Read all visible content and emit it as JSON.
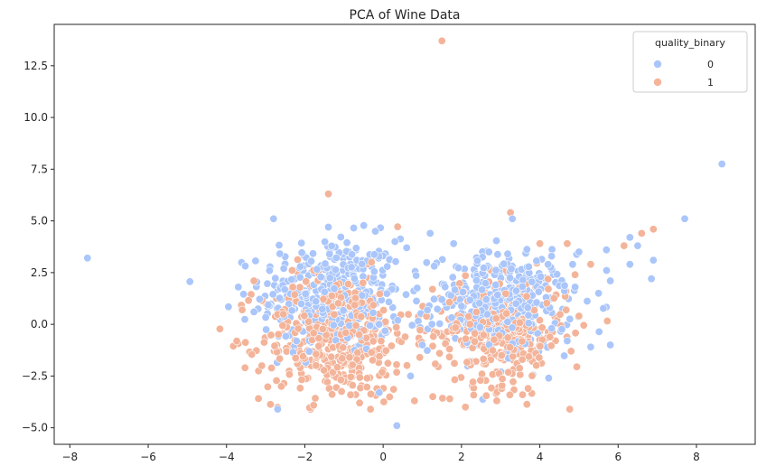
{
  "chart_data": {
    "type": "scatter",
    "title": "PCA of Wine Data",
    "xlabel": "",
    "ylabel": "",
    "xlim": [
      -8.4,
      9.5
    ],
    "ylim": [
      -5.8,
      14.5
    ],
    "x_ticks": [
      -8,
      -6,
      -4,
      -2,
      0,
      2,
      4,
      6,
      8
    ],
    "x_tick_labels": [
      "−8",
      "−6",
      "−4",
      "−2",
      "0",
      "2",
      "4",
      "6",
      "8"
    ],
    "y_ticks": [
      -5.0,
      -2.5,
      0.0,
      2.5,
      5.0,
      7.5,
      10.0,
      12.5
    ],
    "y_tick_labels": [
      "−5.0",
      "−2.5",
      "0.0",
      "2.5",
      "5.0",
      "7.5",
      "10.0",
      "12.5"
    ],
    "grid": false,
    "legend": {
      "title": "quality_binary",
      "placement": "top-right",
      "entries": [
        {
          "label": "0",
          "color": "#aac6fa"
        },
        {
          "label": "1",
          "color": "#f3b49a"
        }
      ]
    },
    "series": [
      {
        "name": "0",
        "color": "#aac6fa",
        "clusters": [
          {
            "cx": -1.3,
            "cy": 1.4,
            "sx": 0.9,
            "sy": 1.4,
            "n": 380
          },
          {
            "cx": 3.0,
            "cy": 1.0,
            "sx": 0.9,
            "sy": 1.2,
            "n": 360
          }
        ],
        "points": [
          [
            -7.55,
            3.2
          ],
          [
            8.65,
            7.75
          ],
          [
            7.7,
            5.1
          ],
          [
            0.35,
            -4.9
          ],
          [
            -3.95,
            0.85
          ],
          [
            6.3,
            4.2
          ],
          [
            6.5,
            3.8
          ],
          [
            6.9,
            3.1
          ],
          [
            6.85,
            2.2
          ],
          [
            6.3,
            2.9
          ],
          [
            5.8,
            2.1
          ],
          [
            5.7,
            3.6
          ],
          [
            5.0,
            3.5
          ],
          [
            5.5,
            1.5
          ],
          [
            5.3,
            -1.1
          ],
          [
            5.8,
            -1.0
          ],
          [
            4.7,
            -0.8
          ],
          [
            1.2,
            4.4
          ],
          [
            0.6,
            3.7
          ],
          [
            1.8,
            3.9
          ],
          [
            3.3,
            5.1
          ],
          [
            -2.8,
            5.1
          ],
          [
            -1.4,
            4.7
          ],
          [
            -0.2,
            4.5
          ],
          [
            0.3,
            4.0
          ],
          [
            2.7,
            3.5
          ],
          [
            1.5,
            1.2
          ],
          [
            1.0,
            -1.0
          ],
          [
            0.7,
            -2.5
          ],
          [
            -3.7,
            1.8
          ],
          [
            -3.3,
            0.6
          ],
          [
            -2.9,
            2.6
          ],
          [
            -0.1,
            -3.3
          ],
          [
            4.3,
            3.3
          ],
          [
            4.9,
            1.8
          ]
        ]
      },
      {
        "name": "1",
        "color": "#f3b49a",
        "clusters": [
          {
            "cx": -1.2,
            "cy": -0.6,
            "sx": 0.95,
            "sy": 1.55,
            "n": 420
          },
          {
            "cx": 3.0,
            "cy": -0.4,
            "sx": 0.85,
            "sy": 1.3,
            "n": 330
          }
        ],
        "points": [
          [
            1.5,
            13.7
          ],
          [
            -1.4,
            6.3
          ],
          [
            3.25,
            5.4
          ],
          [
            6.9,
            4.6
          ],
          [
            6.6,
            4.4
          ],
          [
            6.15,
            3.8
          ],
          [
            5.3,
            2.9
          ],
          [
            4.9,
            2.4
          ],
          [
            4.7,
            3.9
          ],
          [
            4.0,
            3.9
          ],
          [
            5.0,
            0.4
          ],
          [
            4.8,
            -1.3
          ],
          [
            -3.6,
            0.7
          ],
          [
            -3.3,
            2.1
          ],
          [
            -3.1,
            -2.0
          ],
          [
            -2.6,
            -3.0
          ],
          [
            -0.6,
            -3.8
          ],
          [
            2.1,
            -4.0
          ],
          [
            1.7,
            -3.6
          ],
          [
            2.9,
            -3.7
          ],
          [
            3.7,
            -3.1
          ],
          [
            0.8,
            -3.7
          ],
          [
            -0.3,
            3.0
          ]
        ]
      }
    ]
  }
}
